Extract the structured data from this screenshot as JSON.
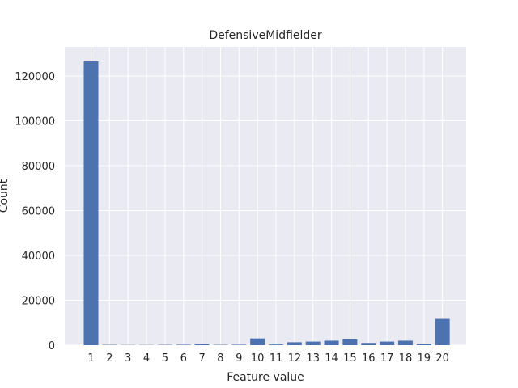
{
  "chart_data": {
    "type": "bar",
    "title": "DefensiveMidfielder",
    "xlabel": "Feature value",
    "ylabel": "Count",
    "categories": [
      "1",
      "2",
      "3",
      "4",
      "5",
      "6",
      "7",
      "8",
      "9",
      "10",
      "11",
      "12",
      "13",
      "14",
      "15",
      "16",
      "17",
      "18",
      "19",
      "20"
    ],
    "values": [
      126500,
      150,
      100,
      100,
      150,
      200,
      500,
      150,
      200,
      3000,
      300,
      1300,
      1600,
      2000,
      2600,
      1000,
      1600,
      2000,
      700,
      11700
    ],
    "ylim": [
      0,
      133000
    ],
    "yticks": [
      0,
      20000,
      40000,
      60000,
      80000,
      100000,
      120000
    ],
    "ytick_labels": [
      "0",
      "20000",
      "40000",
      "60000",
      "80000",
      "100000",
      "120000"
    ],
    "grid": true,
    "colors": {
      "bar": "#4c72b0",
      "plot_bg": "#eaeaf2",
      "grid": "#ffffff"
    }
  }
}
